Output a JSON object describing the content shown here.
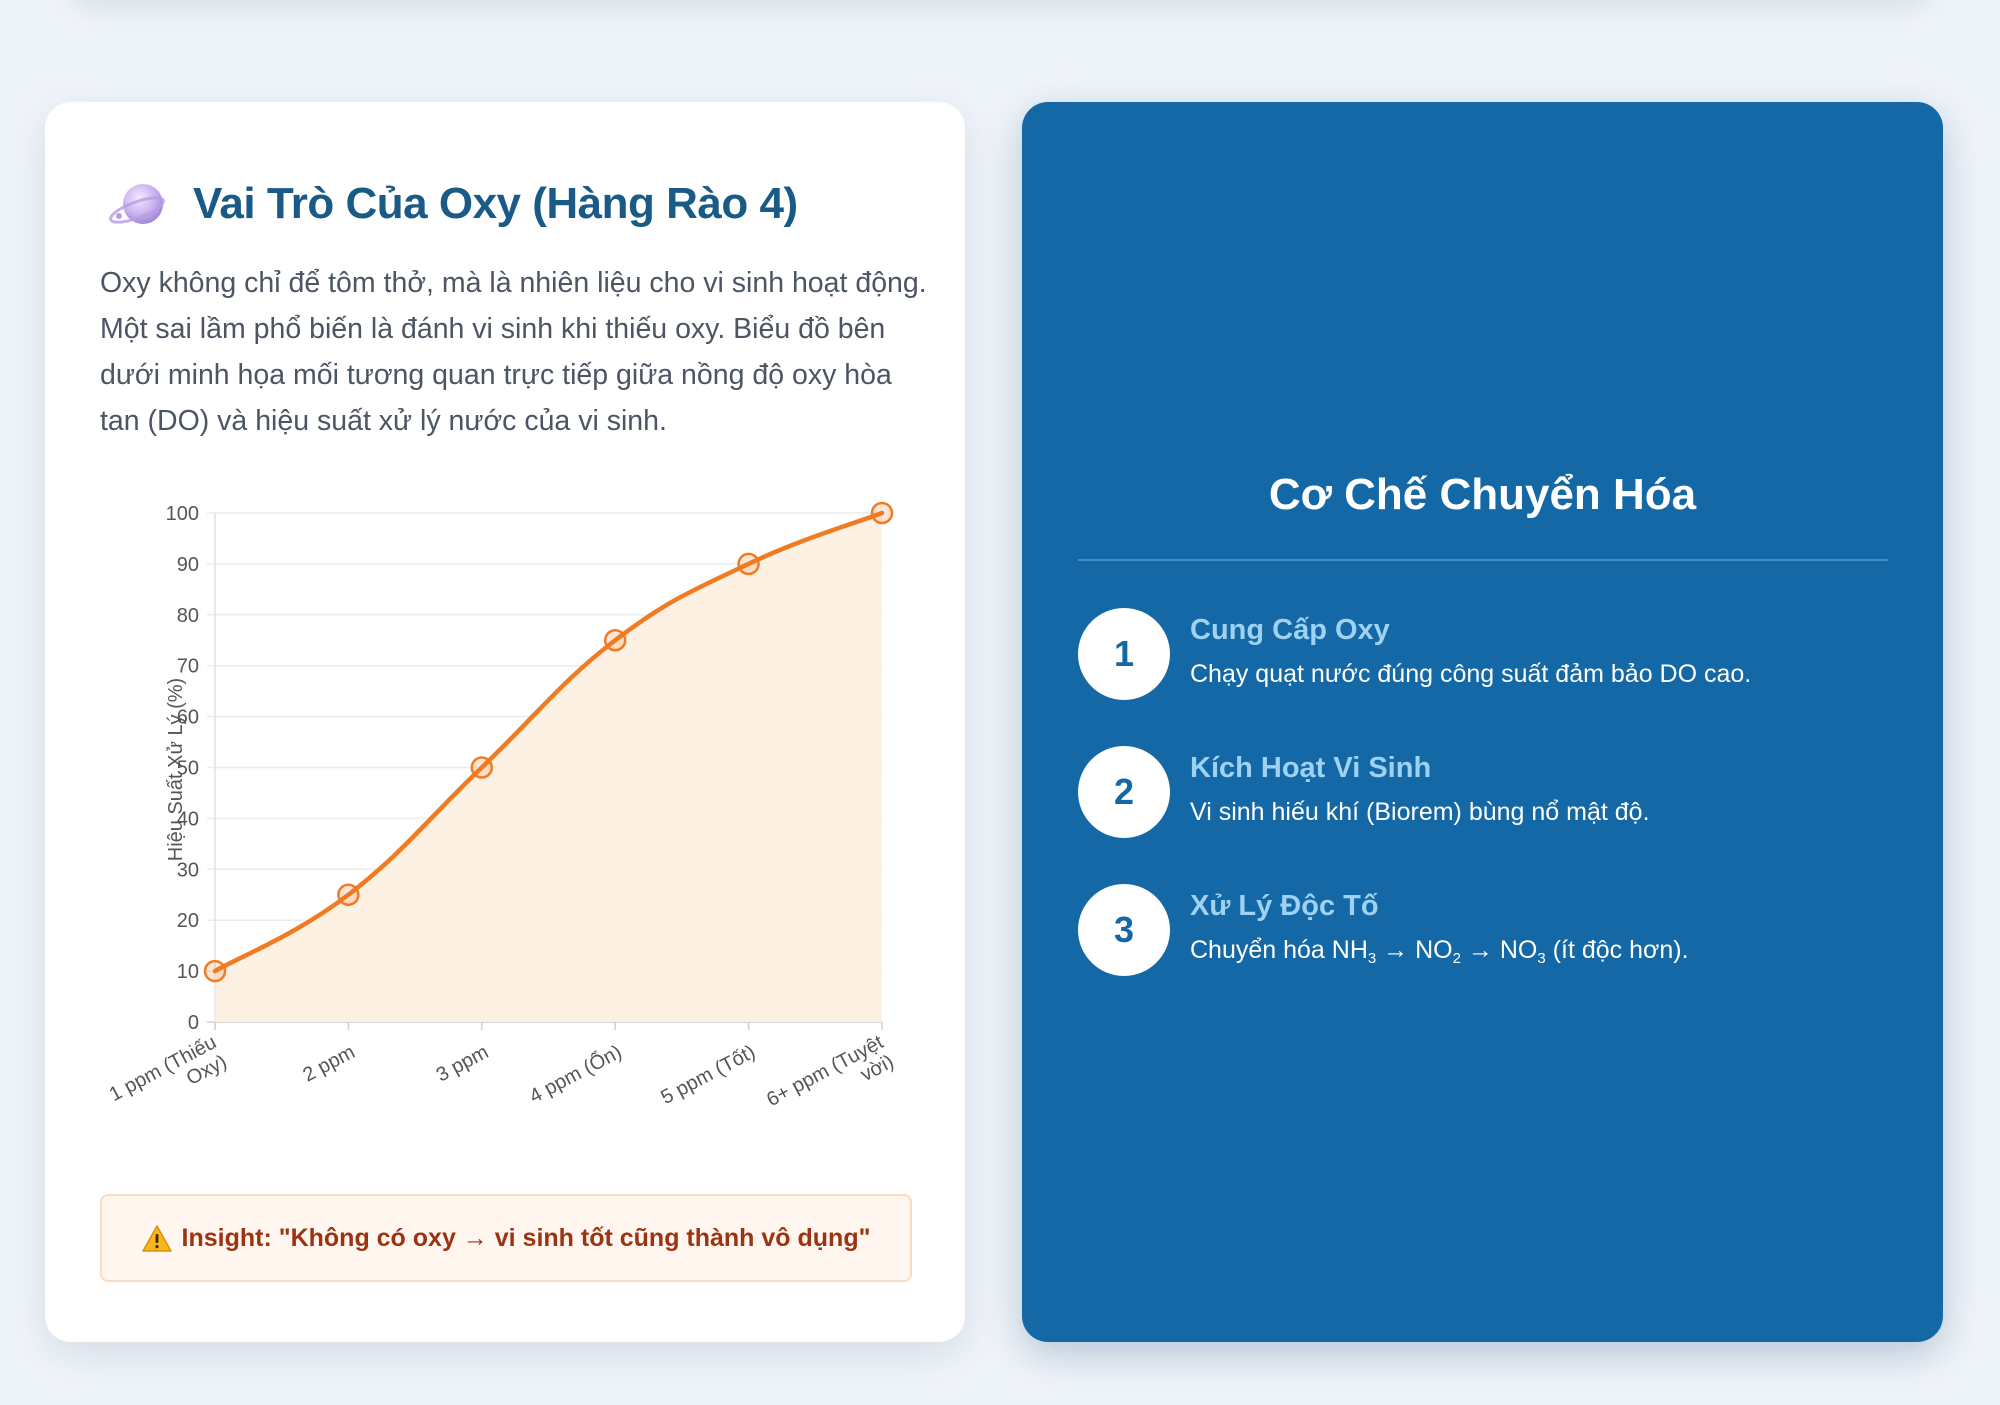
{
  "left_card": {
    "icon": "planet-icon",
    "title": "Vai Trò Của Oxy (Hàng Rào 4)",
    "intro": "Oxy không chỉ để tôm thở, mà là nhiên liệu cho vi sinh hoạt động. Một sai lầm phổ biến là đánh vi sinh khi thiếu oxy. Biểu đồ bên dưới minh họa mối tương quan trực tiếp giữa nồng độ oxy hòa tan (DO) và hiệu suất xử lý nước của vi sinh.",
    "insight": {
      "icon": "warning-icon",
      "text": "Insight: \"Không có oxy → vi sinh tốt cũng thành vô dụng\""
    }
  },
  "chart_data": {
    "type": "line",
    "title": "",
    "xlabel": "",
    "ylabel": "Hiệu Suất Xử Lý (%)",
    "categories": [
      "1 ppm (Thiếu Oxy)",
      "2 ppm",
      "3 ppm",
      "4 ppm (Ổn)",
      "5 ppm (Tốt)",
      "6+ ppm (Tuyệt vời)"
    ],
    "category_lines": [
      [
        "1 ppm (Thiếu",
        "Oxy)"
      ],
      [
        "2 ppm"
      ],
      [
        "3 ppm"
      ],
      [
        "4 ppm (Ổn)"
      ],
      [
        "5 ppm (Tốt)"
      ],
      [
        "6+ ppm (Tuyệt",
        "vời)"
      ]
    ],
    "series": [
      {
        "values": [
          10,
          25,
          50,
          75,
          90,
          100
        ],
        "color": "#f07b22",
        "fill": "#fdeede"
      }
    ],
    "ylim": [
      0,
      100
    ],
    "yticks": [
      0,
      10,
      20,
      30,
      40,
      50,
      60,
      70,
      80,
      90,
      100
    ],
    "grid": true,
    "legend": "none"
  },
  "right_card": {
    "title": "Cơ Chế Chuyển Hóa",
    "steps": [
      {
        "number": "1",
        "title": "Cung Cấp Oxy",
        "desc": "Chạy quạt nước đúng công suất đảm bảo DO cao."
      },
      {
        "number": "2",
        "title": "Kích Hoạt Vi Sinh",
        "desc": "Vi sinh hiếu khí (Biorem) bùng nổ mật độ."
      },
      {
        "number": "3",
        "title": "Xử Lý Độc Tố",
        "desc_parts": [
          "Chuyển hóa NH",
          "3",
          " → NO",
          "2",
          " → NO",
          "3",
          " (ít độc hơn)."
        ]
      }
    ]
  },
  "colors": {
    "page_bg": "#eff4f9",
    "heading": "#1a5a86",
    "panel_bg": "#1468a5",
    "step_title": "#9dd2f3",
    "accent_line": "#f07b22",
    "insight_text": "#9a3412"
  }
}
